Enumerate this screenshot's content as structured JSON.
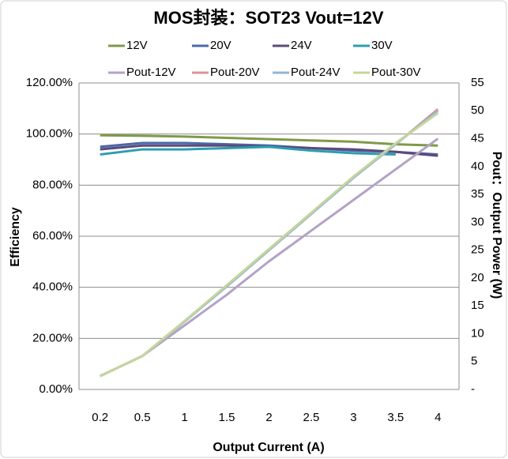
{
  "chart_data": {
    "type": "line",
    "title": "MOS封装：SOT23 Vout=12V",
    "x_label": "Output Current (A)",
    "y_label": "Efficiency",
    "y2_label": "Pout：Output Power (W)",
    "categories": [
      "0.2",
      "0.5",
      "1",
      "1.5",
      "2",
      "2.5",
      "3",
      "3.5",
      "4"
    ],
    "ylim": [
      0,
      120
    ],
    "yticks": [
      {
        "value": 0,
        "label": "0.00%"
      },
      {
        "value": 20,
        "label": "20.00%"
      },
      {
        "value": 40,
        "label": "40.00%"
      },
      {
        "value": 60,
        "label": "60.00%"
      },
      {
        "value": 80,
        "label": "80.00%"
      },
      {
        "value": 100,
        "label": "100.00%"
      },
      {
        "value": 120,
        "label": "120.00%"
      }
    ],
    "y2lim": [
      0,
      55
    ],
    "y2ticks": [
      {
        "value": 0,
        "label": "-"
      },
      5,
      10,
      15,
      20,
      25,
      30,
      35,
      40,
      45,
      50,
      55
    ],
    "grid": true,
    "legend": "top",
    "series": [
      {
        "name": "12V",
        "color": "#7f9a48",
        "values": [
          99.5,
          99.3,
          99,
          98.5,
          98,
          97.5,
          97,
          96,
          95.5
        ]
      },
      {
        "name": "20V",
        "color": "#4a6aa5",
        "values": [
          95,
          96.5,
          96.5,
          96,
          95.5,
          94.5,
          93.5,
          93,
          92
        ]
      },
      {
        "name": "24V",
        "color": "#5c4a7d",
        "values": [
          94,
          95.5,
          95.5,
          95.5,
          95,
          94.5,
          94,
          93,
          91.5
        ]
      },
      {
        "name": "30V",
        "color": "#2e9db0",
        "values": [
          92,
          94,
          94,
          94.5,
          95,
          93.5,
          92.5,
          92,
          null
        ]
      },
      {
        "name": "Pout-12V",
        "color": "#b3a2c7",
        "axis": "y2",
        "values": [
          2.4,
          6,
          11.5,
          17,
          23,
          28.5,
          34,
          39.5,
          45
        ]
      },
      {
        "name": "Pout-20V",
        "color": "#d99694",
        "axis": "y2",
        "values": [
          2.4,
          6,
          12.2,
          18.5,
          25,
          31.5,
          38,
          44,
          50.3
        ]
      },
      {
        "name": "Pout-24V",
        "color": "#95b3d7",
        "axis": "y2",
        "values": [
          2.4,
          6,
          12.2,
          18.5,
          25,
          31.5,
          38,
          44,
          50
        ]
      },
      {
        "name": "Pout-30V",
        "color": "#c3d69b",
        "axis": "y2",
        "values": [
          2.4,
          6,
          12.3,
          18.7,
          25.2,
          31.7,
          38.2,
          44.2,
          49.6
        ]
      }
    ]
  }
}
